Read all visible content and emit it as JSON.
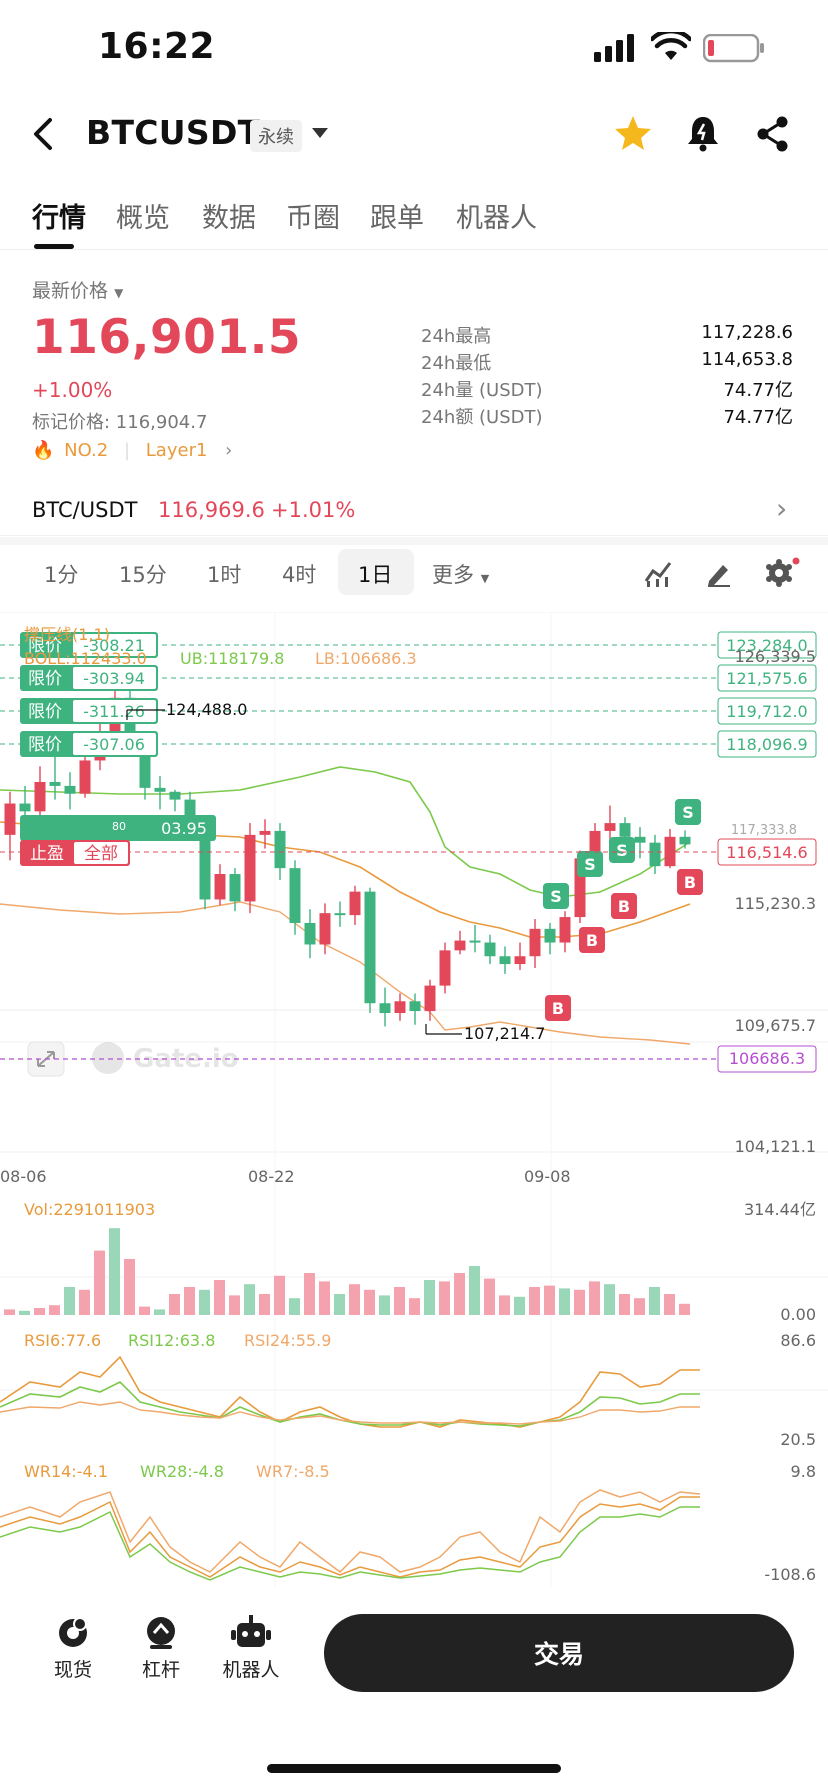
{
  "status": {
    "time": "16:22"
  },
  "header": {
    "symbol": "BTCUSDT",
    "type_badge": "永续"
  },
  "tabs": [
    {
      "label": "行情"
    },
    {
      "label": "概览"
    },
    {
      "label": "数据"
    },
    {
      "label": "币圈"
    },
    {
      "label": "跟单"
    },
    {
      "label": "机器人"
    }
  ],
  "quote": {
    "latest_label": "最新价格",
    "price": "116,901.5",
    "change": "+1.00%",
    "mark_price": "标记价格: 116,904.7",
    "rank": "NO.2",
    "tag": "Layer1",
    "stats": [
      {
        "k": "24h最高",
        "v": "117,228.6"
      },
      {
        "k": "24h最低",
        "v": "114,653.8"
      },
      {
        "k": "24h量 (USDT)",
        "v": "74.77亿"
      },
      {
        "k": "24h额 (USDT)",
        "v": "74.77亿"
      }
    ]
  },
  "spot": {
    "pair": "BTC/USDT",
    "price": "116,969.6",
    "change": "+1.01%"
  },
  "intervals": [
    {
      "label": "1分"
    },
    {
      "label": "15分"
    },
    {
      "label": "1时"
    },
    {
      "label": "4时"
    },
    {
      "label": "1日"
    },
    {
      "label": "更多"
    }
  ],
  "colors": {
    "up": "#e2485a",
    "down": "#3fb37f",
    "accent": "#f5b81c"
  },
  "chart": {
    "indicator_title": "撑压线(1,1)",
    "boll": "BOLL:112433.0",
    "ub": "UB:118179.8",
    "lb": "LB:106686.3",
    "price_axis": [
      "126,339.5",
      "115,230.3",
      "109,675.7",
      "104,121.1"
    ],
    "dates": [
      "08-06",
      "08-22",
      "09-08"
    ],
    "high_label": "124,488.0",
    "low_label": "107,214.7",
    "lb_tag": "106686.3",
    "current_tag": "116,514.6",
    "partial_tag": "03.95",
    "partial_small": "80",
    "watermark": "Gate.io",
    "orders": [
      {
        "tag": "限价",
        "diff": "-308.21",
        "price": "123,284.0"
      },
      {
        "tag": "限价",
        "diff": "-303.94",
        "price": "121,575.6"
      },
      {
        "tag": "限价",
        "diff": "-311.26",
        "price": "119,712.0"
      },
      {
        "tag": "限价",
        "diff": "-307.06",
        "price": "118,096.9"
      }
    ],
    "tp": {
      "tag": "止盈",
      "value": "全部"
    },
    "vol": {
      "label": "Vol:2291011903",
      "max": "314.44亿",
      "min": "0.00"
    },
    "rsi": {
      "rsi6": "RSI6:77.6",
      "rsi12": "RSI12:63.8",
      "rsi24": "RSI24:55.9",
      "max": "86.6",
      "min": "20.5"
    },
    "wr": {
      "wr14": "WR14:-4.1",
      "wr28": "WR28:-4.8",
      "wr7": "WR7:-8.5",
      "max": "9.8",
      "min": "-108.6"
    }
  },
  "chart_data": {
    "type": "candlestick",
    "x_labels": [
      "08-06",
      "08-22",
      "09-08"
    ],
    "ylim": [
      104121.1,
      126339.5
    ],
    "high": 124488.0,
    "low": 107214.7,
    "boll": {
      "mid": 112433.0,
      "ub": 118179.8,
      "lb": 106686.3
    },
    "order_lines": [
      123284.0,
      121575.6,
      119712.0,
      118096.9
    ],
    "last_price": 116514.6
  },
  "bottom_nav": [
    {
      "label": "现货"
    },
    {
      "label": "杠杆"
    },
    {
      "label": "机器人"
    }
  ],
  "trade_button": "交易"
}
